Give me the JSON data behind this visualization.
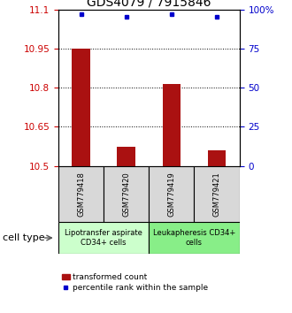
{
  "title": "GDS4079 / 7915846",
  "samples": [
    "GSM779418",
    "GSM779420",
    "GSM779419",
    "GSM779421"
  ],
  "transformed_counts": [
    10.948,
    10.572,
    10.815,
    10.56
  ],
  "percentile_ranks": [
    97,
    95,
    97,
    95
  ],
  "ylim_left": [
    10.5,
    11.1
  ],
  "ylim_right": [
    0,
    100
  ],
  "yticks_left": [
    10.5,
    10.65,
    10.8,
    10.95,
    11.1
  ],
  "ytick_labels_left": [
    "10.5",
    "10.65",
    "10.8",
    "10.95",
    "11.1"
  ],
  "yticks_right": [
    0,
    25,
    50,
    75,
    100
  ],
  "ytick_labels_right": [
    "0",
    "25",
    "50",
    "75",
    "100%"
  ],
  "hlines": [
    10.65,
    10.8,
    10.95
  ],
  "bar_color": "#aa1111",
  "dot_color": "#0000cc",
  "bar_bottom": 10.5,
  "cell_type_groups": [
    {
      "label": "Lipotransfer aspirate\nCD34+ cells",
      "samples": [
        0,
        1
      ],
      "color": "#ccffcc"
    },
    {
      "label": "Leukapheresis CD34+\ncells",
      "samples": [
        2,
        3
      ],
      "color": "#88ee88"
    }
  ],
  "cell_type_label": "cell type",
  "legend_bar_label": "transformed count",
  "legend_dot_label": "percentile rank within the sample",
  "left_tick_color": "#cc0000",
  "right_tick_color": "#0000cc",
  "title_fontsize": 10,
  "tick_fontsize": 7.5,
  "sample_fontsize": 6,
  "group_fontsize": 6,
  "legend_fontsize": 6.5,
  "cell_type_fontsize": 8
}
